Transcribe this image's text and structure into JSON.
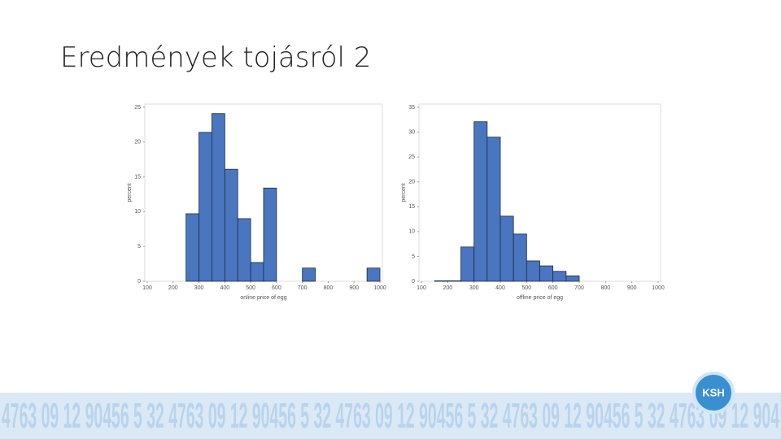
{
  "title": "Eredmények tojásról 2",
  "logo": "KSH",
  "footer_pattern": "4763 09 12 90456 5 32 4763 09 12 90456 5 32 4763 09 12 90456 5 32 4763 09 12 90456 5 32 4763 09 12 904",
  "chart_data": [
    {
      "type": "histogram",
      "x_label": "online price of egg",
      "y_label": "percent",
      "color": "#4a76c0",
      "bins": [
        250,
        300,
        350,
        400,
        450,
        500,
        550,
        600,
        650,
        700,
        750,
        800,
        850,
        900,
        950,
        1000
      ],
      "values": [
        9.7,
        21.4,
        24.1,
        16.1,
        9.0,
        2.7,
        13.4,
        0,
        0,
        1.9,
        0,
        0,
        0,
        0,
        1.9
      ],
      "xlim": [
        100,
        1000
      ],
      "xticks": [
        100,
        200,
        300,
        400,
        500,
        600,
        700,
        800,
        900,
        1000
      ],
      "ylim": [
        0,
        25
      ],
      "yticks": [
        0,
        5,
        10,
        15,
        20,
        25
      ]
    },
    {
      "type": "histogram",
      "x_label": "offline price of egg",
      "y_label": "percent",
      "color": "#4a76c0",
      "bins": [
        150,
        200,
        250,
        300,
        350,
        400,
        450,
        500,
        550,
        600,
        650,
        700
      ],
      "values": [
        0.1,
        0.1,
        6.9,
        32.1,
        29.0,
        13.1,
        9.5,
        4.1,
        3.1,
        2.0,
        1.1
      ],
      "xlim": [
        100,
        1000
      ],
      "xticks": [
        100,
        200,
        300,
        400,
        500,
        600,
        700,
        800,
        900,
        1000
      ],
      "ylim": [
        0,
        35
      ],
      "yticks": [
        0,
        5,
        10,
        15,
        20,
        25,
        30,
        35
      ]
    }
  ]
}
